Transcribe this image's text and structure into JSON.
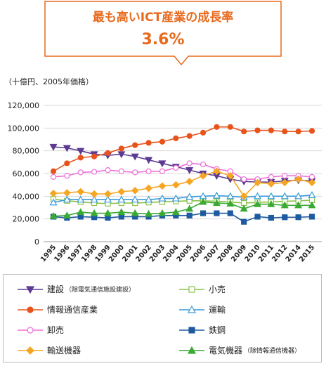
{
  "callout": {
    "title": "最も高いICT産業の成長率",
    "value": "3.6%"
  },
  "colors": {
    "accent": "#e86a1c"
  },
  "chart_data": {
    "type": "line",
    "title": "最も高いICT産業の成長率",
    "ylabel": "（十億円、2005年価格）",
    "xlabel": "",
    "x": [
      "1995",
      "1996",
      "1997",
      "1998",
      "1999",
      "2000",
      "2001",
      "2002",
      "2003",
      "2004",
      "2005",
      "2006",
      "2007",
      "2008",
      "2009",
      "2010",
      "2011",
      "2012",
      "2014",
      "2015"
    ],
    "ylim": [
      0,
      120000
    ],
    "yticks": [
      "0",
      "20,000",
      "40,000",
      "60,000",
      "80,000",
      "100,000",
      "120,000"
    ],
    "grid": true,
    "series": [
      {
        "name": "建設",
        "note": "（除電気通信施設建設）",
        "color": "#5c3a92",
        "marker": "triangle-down",
        "filled": true,
        "values": [
          83500,
          82500,
          80000,
          77000,
          76000,
          77000,
          75000,
          72000,
          69000,
          66000,
          63000,
          60000,
          58000,
          55000,
          53000,
          52500,
          52500,
          53500,
          54000,
          53500
        ]
      },
      {
        "name": "小売",
        "note": "",
        "color": "#8bc34a",
        "marker": "square",
        "filled": false,
        "values": [
          37500,
          36000,
          35000,
          34000,
          33500,
          34000,
          34000,
          34500,
          35000,
          35500,
          36000,
          36000,
          35500,
          35000,
          34000,
          34500,
          35000,
          35500,
          36000,
          36500
        ]
      },
      {
        "name": "情報通信産業",
        "note": "",
        "color": "#e8531c",
        "marker": "circle",
        "filled": true,
        "values": [
          62000,
          69000,
          74000,
          75000,
          78000,
          82000,
          85000,
          87000,
          88000,
          91000,
          93000,
          96000,
          101000,
          101000,
          97000,
          98000,
          98000,
          97000,
          97000,
          97500
        ]
      },
      {
        "name": "運輸",
        "note": "",
        "color": "#3a9ad9",
        "marker": "triangle",
        "filled": false,
        "values": [
          34500,
          37000,
          37000,
          37000,
          37000,
          37000,
          37000,
          37000,
          38000,
          38000,
          39500,
          40000,
          40500,
          40000,
          39000,
          40000,
          40000,
          40000,
          40000,
          41000
        ]
      },
      {
        "name": "卸売",
        "note": "",
        "color": "#ee6fd6",
        "marker": "circle",
        "filled": false,
        "values": [
          57000,
          58000,
          61000,
          61500,
          63000,
          62000,
          61000,
          62000,
          62000,
          65000,
          69000,
          68000,
          64000,
          62000,
          55000,
          55000,
          57000,
          58000,
          58000,
          57000
        ]
      },
      {
        "name": "鉄鋼",
        "note": "",
        "color": "#1e5aa0",
        "marker": "square",
        "filled": true,
        "values": [
          22000,
          21000,
          22000,
          21500,
          21000,
          22000,
          22000,
          22000,
          23000,
          23000,
          23000,
          25000,
          25000,
          25000,
          17500,
          22000,
          21000,
          21500,
          21500,
          22000
        ]
      },
      {
        "name": "輸送機器",
        "note": "",
        "color": "#f5a623",
        "marker": "diamond",
        "filled": true,
        "values": [
          42500,
          43000,
          44000,
          42000,
          42000,
          44000,
          45000,
          47000,
          49000,
          50000,
          53000,
          58000,
          62000,
          58000,
          40000,
          52000,
          51000,
          52000,
          55000,
          52000
        ]
      },
      {
        "name": "電気機器",
        "note": "（除情報通信機器）",
        "color": "#3aaa35",
        "marker": "triangle",
        "filled": true,
        "values": [
          22500,
          23000,
          26000,
          25000,
          25000,
          26000,
          25000,
          24500,
          25000,
          26000,
          29000,
          35000,
          34000,
          33500,
          29000,
          33000,
          33000,
          32000,
          32000,
          32000
        ]
      }
    ],
    "legend_order": [
      0,
      1,
      2,
      3,
      4,
      5,
      6,
      7
    ]
  }
}
